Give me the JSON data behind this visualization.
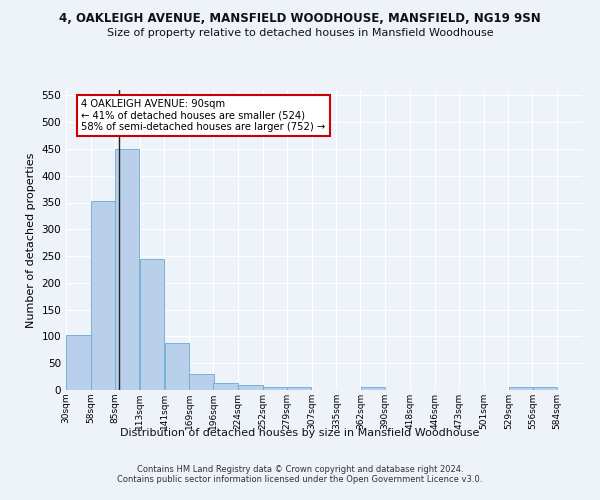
{
  "title_line1": "4, OAKLEIGH AVENUE, MANSFIELD WOODHOUSE, MANSFIELD, NG19 9SN",
  "title_line2": "Size of property relative to detached houses in Mansfield Woodhouse",
  "xlabel": "Distribution of detached houses by size in Mansfield Woodhouse",
  "ylabel": "Number of detached properties",
  "footnote": "Contains HM Land Registry data © Crown copyright and database right 2024.\nContains public sector information licensed under the Open Government Licence v3.0.",
  "annotation_title": "4 OAKLEIGH AVENUE: 90sqm",
  "annotation_line2": "← 41% of detached houses are smaller (524)",
  "annotation_line3": "58% of semi-detached houses are larger (752) →",
  "bins_left": [
    30,
    58,
    85,
    113,
    141,
    169,
    196,
    224,
    252,
    279,
    307,
    335,
    362,
    390,
    418,
    446,
    473,
    501,
    529,
    556
  ],
  "bin_width": 28,
  "counts": [
    103,
    353,
    449,
    245,
    88,
    30,
    14,
    10,
    6,
    5,
    0,
    0,
    5,
    0,
    0,
    0,
    0,
    0,
    5,
    5
  ],
  "marker_x": 90,
  "bar_color": "#b8d0ea",
  "bar_edge_color": "#6aaad4",
  "marker_color": "#222222",
  "annotation_box_color": "#ffffff",
  "annotation_box_edge": "#cc0000",
  "background_color": "#eef2f9",
  "grid_color": "#ffffff",
  "ylim": [
    0,
    560
  ],
  "yticks": [
    0,
    50,
    100,
    150,
    200,
    250,
    300,
    350,
    400,
    450,
    500,
    550
  ],
  "xlim_left": 30,
  "xlim_right": 612
}
